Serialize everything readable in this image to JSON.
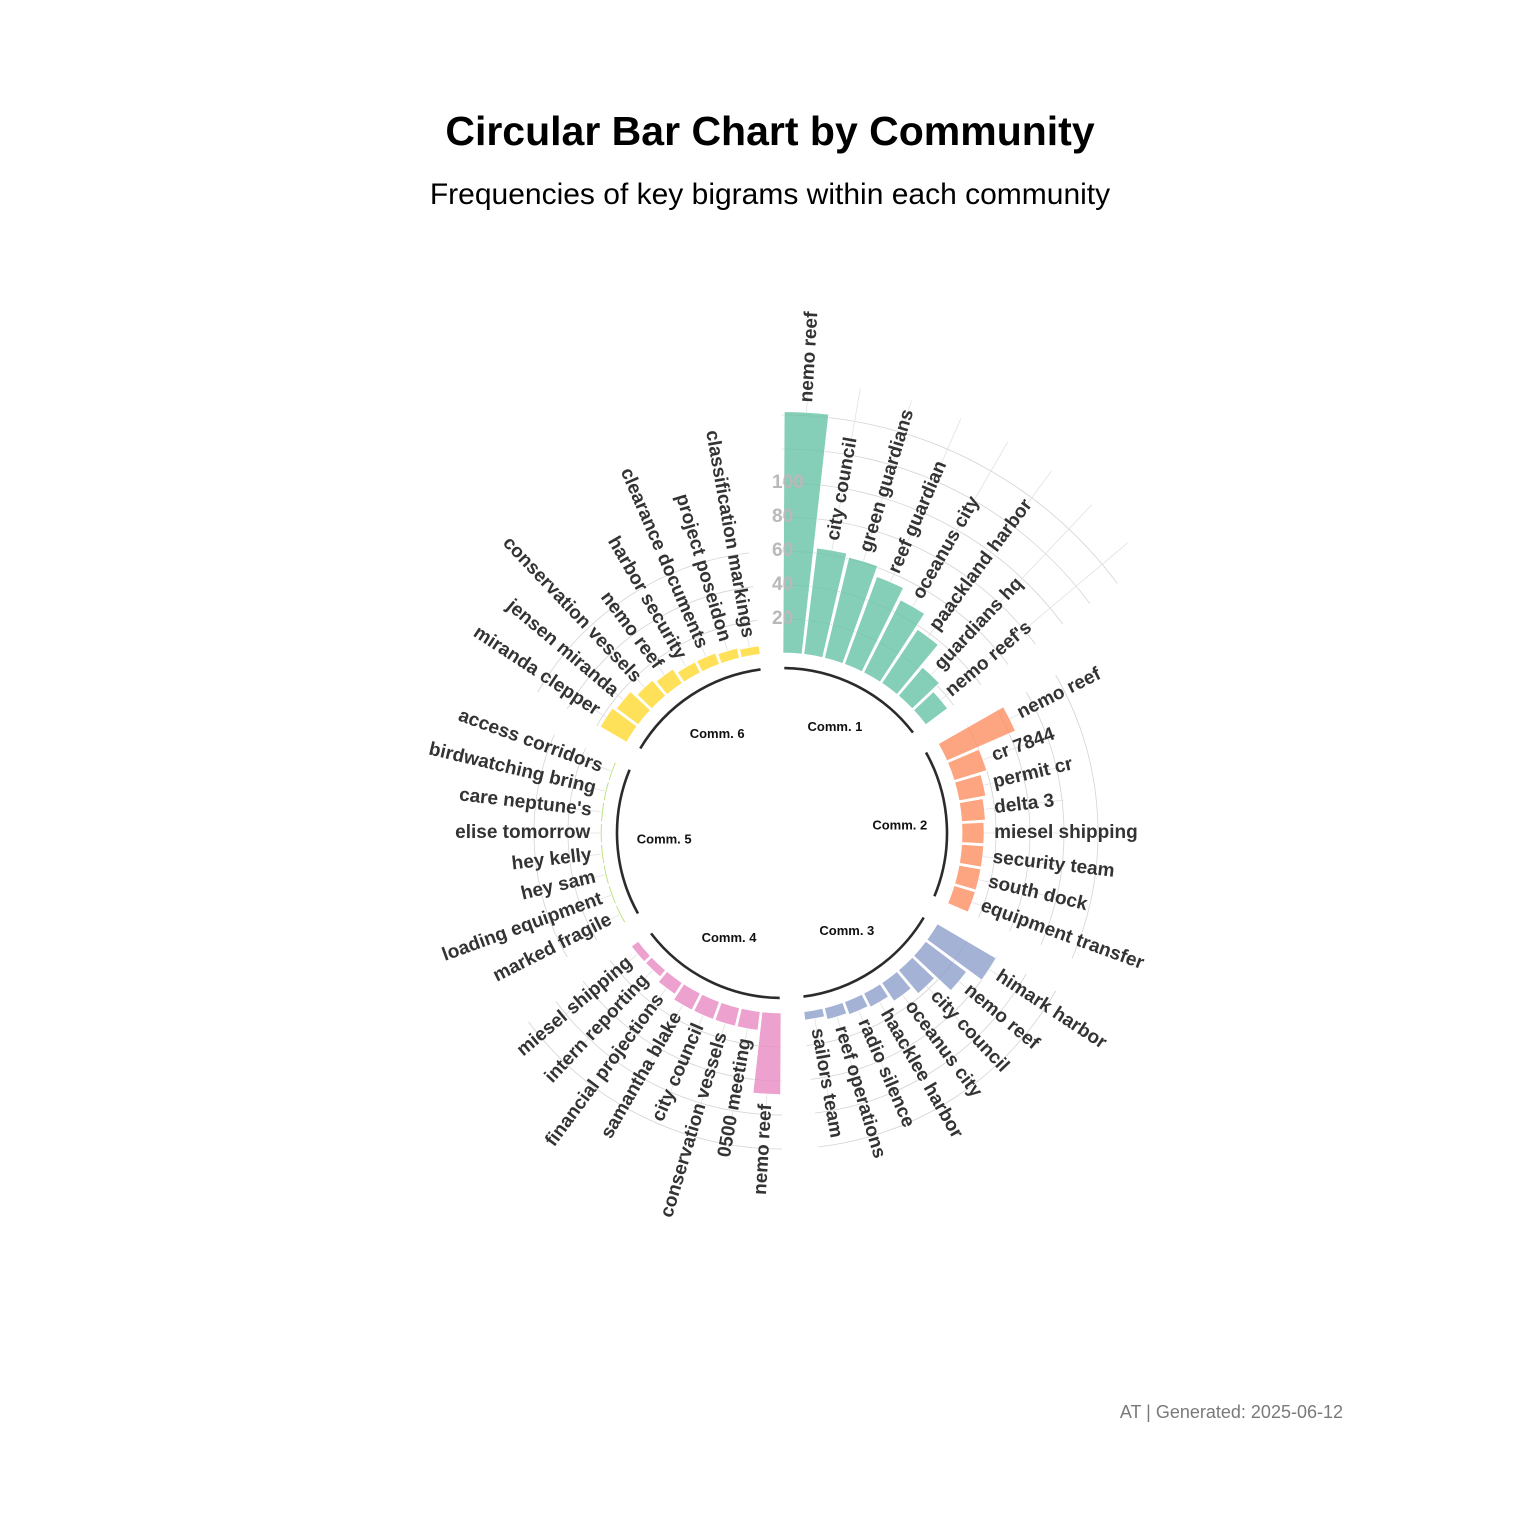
{
  "chart_data": {
    "type": "bar",
    "title": "Circular Bar Chart by Community",
    "subtitle": "Frequencies of key bigrams within each community",
    "caption": "AT | Generated: 2025-06-12",
    "ylim": [
      0,
      140
    ],
    "ticks": [
      20,
      40,
      60,
      80,
      100
    ],
    "tick_labels": [
      "20",
      "40",
      "60",
      "80",
      "100"
    ],
    "grid": true,
    "groups": [
      {
        "name": "Comm. 1",
        "color": "#66c2a5",
        "categories": [
          "nemo reef",
          "city council",
          "green guardians",
          "reef guardian",
          "oceanus city",
          "paackland harbor",
          "guardians hq",
          "nemo reef's"
        ],
        "values": [
          142,
          63,
          61,
          55,
          48,
          38,
          22,
          16
        ]
      },
      {
        "name": "Comm. 2",
        "color": "#fc8d62",
        "categories": [
          "nemo reef",
          "cr 7844",
          "permit cr",
          "delta 3",
          "miesel shipping",
          "security team",
          "south dock",
          "equipment transfer"
        ],
        "values": [
          44,
          20,
          16,
          14,
          13,
          13,
          13,
          13
        ]
      },
      {
        "name": "Comm. 3",
        "color": "#8da0cb",
        "categories": [
          "himark harbor",
          "nemo reef",
          "city council",
          "oceanus city",
          "haacklee harbor",
          "radio silence",
          "reef operations",
          "sailors team"
        ],
        "values": [
          40,
          30,
          18,
          13,
          9,
          8,
          7,
          5
        ]
      },
      {
        "name": "Comm. 4",
        "color": "#e78ac3",
        "categories": [
          "nemo reef",
          "0500 meeting",
          "conservation vessels",
          "city council",
          "samantha blake",
          "financial projections",
          "intern reporting",
          "miesel shipping"
        ],
        "values": [
          48,
          11,
          11,
          11,
          11,
          8,
          5,
          5
        ]
      },
      {
        "name": "Comm. 5",
        "color": "#a6d854",
        "categories": [
          "marked fragile",
          "loading equipment",
          "hey sam",
          "hey kelly",
          "elise tomorrow",
          "care neptune's",
          "birdwatching bring",
          "access corridors"
        ],
        "values": [
          1,
          1,
          1,
          1,
          1,
          1,
          1,
          1
        ]
      },
      {
        "name": "Comm. 6",
        "color": "#ffd92f",
        "categories": [
          "miranda clepper",
          "jensen miranda",
          "conservation vessels",
          "nemo reef",
          "harbor security",
          "clearance documents",
          "project poseidon",
          "classification markings"
        ],
        "values": [
          18,
          16,
          12,
          10,
          7,
          7,
          6,
          5
        ]
      }
    ]
  }
}
